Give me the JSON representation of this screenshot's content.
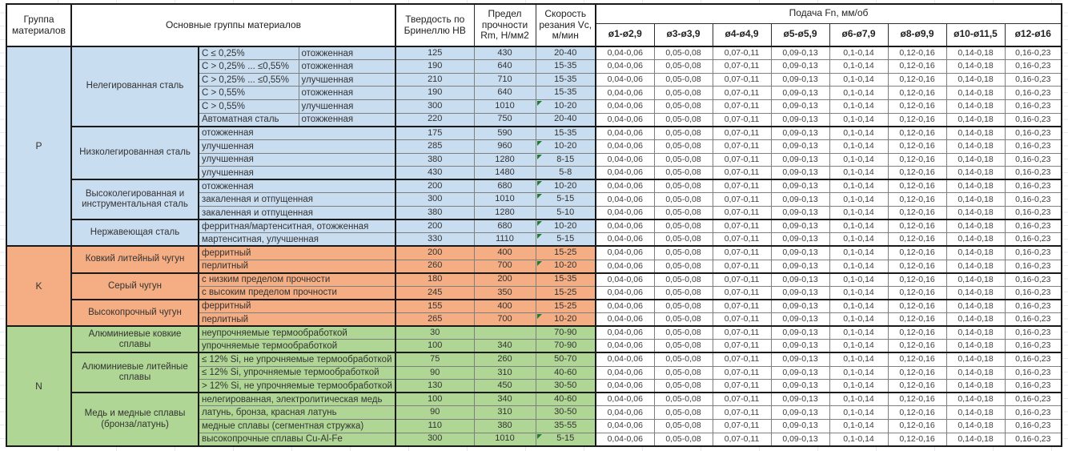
{
  "table": {
    "headers": {
      "group": "Группа материалов",
      "main": "Основные группы материалов",
      "hardness": "Твердость по Бринеллю HB",
      "strength": "Предел прочности Rm, Н/мм2",
      "speed": "Скорость резания Vc, м/мин",
      "feed": "Подача Fn, мм/об",
      "feed_cols": [
        "ø1-ø2,9",
        "ø3-ø3,9",
        "ø4-ø4,9",
        "ø5-ø5,9",
        "ø6-ø7,9",
        "ø8-ø9,9",
        "ø10-ø11,5",
        "ø12-ø16"
      ]
    },
    "feed_values": [
      "0,04-0,06",
      "0,05-0,08",
      "0,07-0,11",
      "0,09-0,13",
      "0,1-0,14",
      "0,12-0,16",
      "0,14-0,18",
      "0,16-0,23"
    ],
    "colors": {
      "group_p_blue": "#C9DDF0",
      "group_k_orange": "#F5AD83",
      "group_n_green": "#AFD694",
      "note_marker_green": "#1E7C34"
    },
    "groups": [
      {
        "code": "P",
        "color_key": "p",
        "subgroups": [
          {
            "name": "Нелегированная сталь",
            "rows": [
              {
                "cond1": "C ≤ 0,25%",
                "cond2": "отожженная",
                "hb": "125",
                "rm": "430",
                "vc": "20-40",
                "note": false
              },
              {
                "cond1": "C > 0,25% ... ≤0,55%",
                "cond2": "отожженная",
                "hb": "190",
                "rm": "640",
                "vc": "15-35",
                "note": false
              },
              {
                "cond1": "C > 0,25% ... ≤0,55%",
                "cond2": "улучшенная",
                "hb": "210",
                "rm": "710",
                "vc": "15-35",
                "note": false
              },
              {
                "cond1": "C > 0,55%",
                "cond2": "отожженная",
                "hb": "190",
                "rm": "640",
                "vc": "15-35",
                "note": false
              },
              {
                "cond1": "C > 0,55%",
                "cond2": "улучшенная",
                "hb": "300",
                "rm": "1010",
                "vc": "10-20",
                "note": true
              },
              {
                "cond1": "Автоматная сталь",
                "cond2": "отожженная",
                "hb": "220",
                "rm": "750",
                "vc": "20-40",
                "note": false
              }
            ]
          },
          {
            "name": "Низколегированная сталь",
            "rows": [
              {
                "cond": "отожженная",
                "hb": "175",
                "rm": "590",
                "vc": "15-35",
                "note": false
              },
              {
                "cond": "улучшенная",
                "hb": "285",
                "rm": "960",
                "vc": "10-20",
                "note": true
              },
              {
                "cond": "улучшенная",
                "hb": "380",
                "rm": "1280",
                "vc": "8-15",
                "note": true
              },
              {
                "cond": "улучшенная",
                "hb": "430",
                "rm": "1480",
                "vc": "5-8",
                "note": false
              }
            ]
          },
          {
            "name": "Высоколегированная и инструментальная сталь",
            "rows": [
              {
                "cond": "отожженная",
                "hb": "200",
                "rm": "680",
                "vc": "10-20",
                "note": true
              },
              {
                "cond": "закаленная и отпущенная",
                "hb": "300",
                "rm": "1010",
                "vc": "5-15",
                "note": true
              },
              {
                "cond": "закаленная и отпущенная",
                "hb": "380",
                "rm": "1280",
                "vc": "5-10",
                "note": false
              }
            ]
          },
          {
            "name": "Нержавеющая сталь",
            "rows": [
              {
                "cond": "ферритная/мартенситная, отожженная",
                "hb": "200",
                "rm": "680",
                "vc": "10-20",
                "note": true
              },
              {
                "cond": "мартенситная, улучшенная",
                "hb": "330",
                "rm": "1110",
                "vc": "5-15",
                "note": true
              }
            ]
          }
        ]
      },
      {
        "code": "K",
        "color_key": "k",
        "subgroups": [
          {
            "name": "Ковкий литейный чугун",
            "rows": [
              {
                "cond": "ферритный",
                "hb": "200",
                "rm": "400",
                "vc": "15-25",
                "note": false
              },
              {
                "cond": "перлитный",
                "hb": "260",
                "rm": "700",
                "vc": "10-20",
                "note": true
              }
            ]
          },
          {
            "name": "Серый чугун",
            "rows": [
              {
                "cond": "с низким пределом прочности",
                "hb": "180",
                "rm": "200",
                "vc": "15-35",
                "note": false
              },
              {
                "cond": "с высоким пределом прочности",
                "hb": "245",
                "rm": "350",
                "vc": "15-25",
                "note": false
              }
            ]
          },
          {
            "name": "Высокопрочный чугун",
            "rows": [
              {
                "cond": "ферритный",
                "hb": "155",
                "rm": "400",
                "vc": "15-25",
                "note": false
              },
              {
                "cond": "перлитный",
                "hb": "265",
                "rm": "700",
                "vc": "10-20",
                "note": true
              }
            ]
          }
        ]
      },
      {
        "code": "N",
        "color_key": "n",
        "subgroups": [
          {
            "name": "Алюминиевые ковкие сплавы",
            "rows": [
              {
                "cond": "неупрочняемые термообработкой",
                "hb": "30",
                "rm": "",
                "vc": "70-90",
                "note": false
              },
              {
                "cond": "упрочняемые термообработкой",
                "hb": "100",
                "rm": "340",
                "vc": "70-90",
                "note": false
              }
            ]
          },
          {
            "name": "Алюминиевые литейные сплавы",
            "rows": [
              {
                "cond": "≤ 12% Si, не упрочняемые термообработкой",
                "hb": "75",
                "rm": "260",
                "vc": "50-70",
                "note": false
              },
              {
                "cond": "≤ 12% Si, упрочняемые термообработкой",
                "hb": "90",
                "rm": "310",
                "vc": "40-60",
                "note": false
              },
              {
                "cond": "> 12% Si, не упрочняемые термообработкой",
                "hb": "130",
                "rm": "450",
                "vc": "30-50",
                "note": false
              }
            ]
          },
          {
            "name": "Медь и медные сплавы (бронза/латунь)",
            "rows": [
              {
                "cond": "нелегированная, электролитическая медь",
                "hb": "100",
                "rm": "340",
                "vc": "40-60",
                "note": false
              },
              {
                "cond": "латунь, бронза, красная латунь",
                "hb": "90",
                "rm": "310",
                "vc": "30-50",
                "note": false
              },
              {
                "cond": "медные сплавы (сегментная стружка)",
                "hb": "110",
                "rm": "380",
                "vc": "35-55",
                "note": false
              },
              {
                "cond": "высокопрочные сплавы Cu-Al-Fe",
                "hb": "300",
                "rm": "1010",
                "vc": "5-15",
                "note": true
              }
            ]
          }
        ]
      }
    ]
  }
}
